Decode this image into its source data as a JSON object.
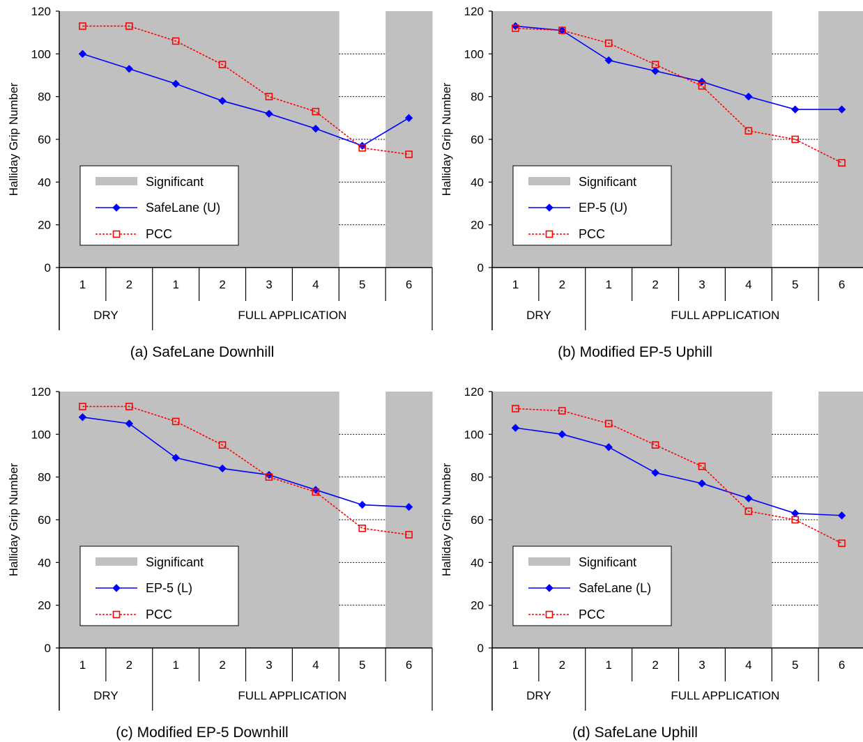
{
  "chart_data": [
    {
      "type": "line",
      "title": "(a) SafeLane Downhill",
      "ylabel": "Halliday Grip Number",
      "ylim": [
        0,
        120
      ],
      "yticks": [
        0,
        20,
        40,
        60,
        80,
        100,
        120
      ],
      "categories": [
        "1",
        "2",
        "1",
        "2",
        "3",
        "4",
        "5",
        "6"
      ],
      "groups": [
        {
          "label": "DRY",
          "span": 2
        },
        {
          "label": "FULL APPLICATION",
          "span": 6
        }
      ],
      "significant": [
        true,
        true,
        true,
        true,
        true,
        true,
        false,
        true
      ],
      "legend": {
        "significant_label": "Significant"
      },
      "series": [
        {
          "name": "SafeLane (U)",
          "color": "#0000ff",
          "marker": "diamond",
          "dash": "solid",
          "values": [
            100,
            93,
            86,
            78,
            72,
            65,
            57,
            70
          ]
        },
        {
          "name": "PCC",
          "color": "#ff0000",
          "marker": "open-square",
          "dash": "dashed",
          "values": [
            113,
            113,
            106,
            95,
            80,
            73,
            56,
            53
          ]
        }
      ]
    },
    {
      "type": "line",
      "title": "(b) Modified EP-5 Uphill",
      "ylabel": "Halliday Grip Number",
      "ylim": [
        0,
        120
      ],
      "yticks": [
        0,
        20,
        40,
        60,
        80,
        100,
        120
      ],
      "categories": [
        "1",
        "2",
        "1",
        "2",
        "3",
        "4",
        "5",
        "6"
      ],
      "groups": [
        {
          "label": "DRY",
          "span": 2
        },
        {
          "label": "FULL APPLICATION",
          "span": 6
        }
      ],
      "significant": [
        true,
        true,
        true,
        true,
        true,
        true,
        false,
        true
      ],
      "legend": {
        "significant_label": "Significant"
      },
      "series": [
        {
          "name": "EP-5 (U)",
          "color": "#0000ff",
          "marker": "diamond",
          "dash": "solid",
          "values": [
            113,
            111,
            97,
            92,
            87,
            80,
            74,
            74
          ]
        },
        {
          "name": "PCC",
          "color": "#ff0000",
          "marker": "open-square",
          "dash": "dashed",
          "values": [
            112,
            111,
            105,
            95,
            85,
            64,
            60,
            49
          ]
        }
      ]
    },
    {
      "type": "line",
      "title": "(c) Modified EP-5 Downhill",
      "ylabel": "Halliday Grip Number",
      "ylim": [
        0,
        120
      ],
      "yticks": [
        0,
        20,
        40,
        60,
        80,
        100,
        120
      ],
      "categories": [
        "1",
        "2",
        "1",
        "2",
        "3",
        "4",
        "5",
        "6"
      ],
      "groups": [
        {
          "label": "DRY",
          "span": 2
        },
        {
          "label": "FULL APPLICATION",
          "span": 6
        }
      ],
      "significant": [
        true,
        true,
        true,
        true,
        true,
        true,
        false,
        true
      ],
      "legend": {
        "significant_label": "Significant"
      },
      "series": [
        {
          "name": "EP-5 (L)",
          "color": "#0000ff",
          "marker": "diamond",
          "dash": "solid",
          "values": [
            108,
            105,
            89,
            84,
            81,
            74,
            67,
            66
          ]
        },
        {
          "name": "PCC",
          "color": "#ff0000",
          "marker": "open-square",
          "dash": "dashed",
          "values": [
            113,
            113,
            106,
            95,
            80,
            73,
            56,
            53
          ]
        }
      ]
    },
    {
      "type": "line",
      "title": "(d) SafeLane Uphill",
      "ylabel": "Halliday Grip Number",
      "ylim": [
        0,
        120
      ],
      "yticks": [
        0,
        20,
        40,
        60,
        80,
        100,
        120
      ],
      "categories": [
        "1",
        "2",
        "1",
        "2",
        "3",
        "4",
        "5",
        "6"
      ],
      "groups": [
        {
          "label": "DRY",
          "span": 2
        },
        {
          "label": "FULL APPLICATION",
          "span": 6
        }
      ],
      "significant": [
        true,
        true,
        true,
        true,
        true,
        true,
        false,
        true
      ],
      "legend": {
        "significant_label": "Significant"
      },
      "series": [
        {
          "name": "SafeLane (L)",
          "color": "#0000ff",
          "marker": "diamond",
          "dash": "solid",
          "values": [
            103,
            100,
            94,
            82,
            77,
            70,
            63,
            62
          ]
        },
        {
          "name": "PCC",
          "color": "#ff0000",
          "marker": "open-square",
          "dash": "dashed",
          "values": [
            112,
            111,
            105,
            95,
            85,
            64,
            60,
            49
          ]
        }
      ]
    }
  ],
  "colors": {
    "significant_fill": "#c0c0c0",
    "plot_background": "#ffffff",
    "axis": "#000000",
    "gridline": "#000000"
  }
}
